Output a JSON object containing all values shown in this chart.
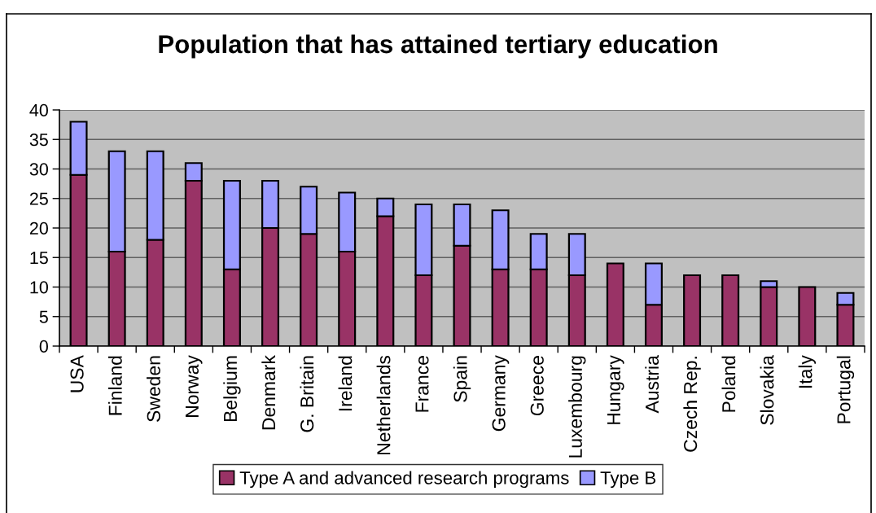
{
  "chart_data": {
    "type": "bar",
    "title": "Population that has attained tertiary education",
    "categories": [
      "USA",
      "Finland",
      "Sweden",
      "Norway",
      "Belgium",
      "Denmark",
      "G. Britain",
      "Ireland",
      "Netherlands",
      "France",
      "Spain",
      "Germany",
      "Greece",
      "Luxembourg",
      "Hungary",
      "Austria",
      "Czech Rep.",
      "Poland",
      "Slovakia",
      "Italy",
      "Portugal"
    ],
    "series": [
      {
        "name": "Type A and advanced research programs",
        "color": "#993366",
        "values": [
          29,
          16,
          18,
          28,
          13,
          20,
          19,
          16,
          22,
          12,
          17,
          13,
          13,
          12,
          14,
          7,
          12,
          12,
          10,
          10,
          7
        ]
      },
      {
        "name": "Type B",
        "color": "#9999ff",
        "values": [
          9,
          17,
          15,
          3,
          15,
          8,
          8,
          10,
          3,
          12,
          7,
          10,
          6,
          7,
          null,
          7,
          null,
          null,
          1,
          null,
          2
        ]
      }
    ],
    "stacked": true,
    "ylim": [
      0,
      40
    ],
    "yticks": [
      0,
      5,
      10,
      15,
      20,
      25,
      30,
      35,
      40
    ],
    "grid": "y",
    "legend": "bottom"
  }
}
